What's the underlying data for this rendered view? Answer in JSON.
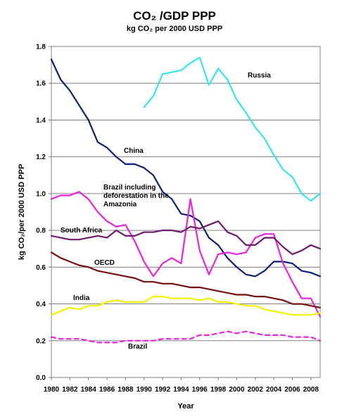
{
  "chart_data": {
    "type": "line",
    "title": "CO₂ /GDP PPP",
    "subtitle": "kg CO₂ per 2000 USD PPP",
    "xlabel": "Year",
    "ylabel": "kg CO₂/per 2000 USD PPP",
    "xlim": [
      1980,
      2009
    ],
    "ylim": [
      0,
      1.8
    ],
    "yticks": [
      "0.0",
      "0.2",
      "0.4",
      "0.6",
      "0.8",
      "1.0",
      "1.2",
      "1.4",
      "1.6",
      "1.8"
    ],
    "xticks": [
      "1980",
      "1982",
      "1984",
      "1986",
      "1988",
      "1990",
      "1992",
      "1994",
      "1996",
      "1998",
      "2000",
      "2002",
      "2004",
      "2006",
      "2008"
    ],
    "grid": true,
    "legend": "none",
    "series": [
      {
        "name": "Russia",
        "label": "Russia",
        "color": "#33e6f0",
        "dashed": false,
        "x": [
          1990,
          1991,
          1992,
          1993,
          1994,
          1995,
          1996,
          1997,
          1998,
          1999,
          2000,
          2001,
          2002,
          2003,
          2004,
          2005,
          2006,
          2007,
          2008,
          2009
        ],
        "values": [
          1.47,
          1.53,
          1.65,
          1.66,
          1.67,
          1.71,
          1.74,
          1.59,
          1.68,
          1.62,
          1.51,
          1.44,
          1.36,
          1.3,
          1.21,
          1.13,
          1.09,
          1.0,
          0.96,
          1.0
        ]
      },
      {
        "name": "China",
        "label": "China",
        "color": "#0d1f7a",
        "dashed": false,
        "x": [
          1980,
          1981,
          1982,
          1983,
          1984,
          1985,
          1986,
          1987,
          1988,
          1989,
          1990,
          1991,
          1992,
          1993,
          1994,
          1995,
          1996,
          1997,
          1998,
          1999,
          2000,
          2001,
          2002,
          2003,
          2004,
          2005,
          2006,
          2007,
          2008,
          2009
        ],
        "values": [
          1.73,
          1.62,
          1.56,
          1.48,
          1.4,
          1.28,
          1.25,
          1.2,
          1.16,
          1.16,
          1.14,
          1.1,
          1.01,
          0.97,
          0.89,
          0.88,
          0.85,
          0.76,
          0.72,
          0.65,
          0.6,
          0.56,
          0.55,
          0.58,
          0.63,
          0.63,
          0.62,
          0.58,
          0.57,
          0.55
        ]
      },
      {
        "name": "Brazil including deforestation in the Amazonia",
        "label": "Brazil including\ndeforestation in the\nAmazonia",
        "color": "#ee22dd",
        "dashed": false,
        "x": [
          1980,
          1981,
          1982,
          1983,
          1984,
          1985,
          1986,
          1987,
          1988,
          1989,
          1990,
          1991,
          1992,
          1993,
          1994,
          1995,
          1996,
          1997,
          1998,
          1999,
          2000,
          2001,
          2002,
          2003,
          2004,
          2005,
          2006,
          2007,
          2008,
          2009
        ],
        "values": [
          0.97,
          0.99,
          0.99,
          1.01,
          0.97,
          0.9,
          0.85,
          0.82,
          0.83,
          0.74,
          0.63,
          0.55,
          0.62,
          0.65,
          0.62,
          0.97,
          0.69,
          0.56,
          0.67,
          0.68,
          0.67,
          0.68,
          0.76,
          0.78,
          0.78,
          0.62,
          0.52,
          0.43,
          0.43,
          0.33
        ]
      },
      {
        "name": "South Africa",
        "label": "South Africa",
        "color": "#6e1a6e",
        "dashed": false,
        "x": [
          1980,
          1981,
          1982,
          1983,
          1984,
          1985,
          1986,
          1987,
          1988,
          1989,
          1990,
          1991,
          1992,
          1993,
          1994,
          1995,
          1996,
          1997,
          1998,
          1999,
          2000,
          2001,
          2002,
          2003,
          2004,
          2005,
          2006,
          2007,
          2008,
          2009
        ],
        "values": [
          0.77,
          0.76,
          0.75,
          0.75,
          0.76,
          0.77,
          0.76,
          0.8,
          0.77,
          0.77,
          0.79,
          0.79,
          0.8,
          0.8,
          0.79,
          0.82,
          0.81,
          0.83,
          0.85,
          0.79,
          0.77,
          0.72,
          0.72,
          0.76,
          0.76,
          0.71,
          0.67,
          0.69,
          0.72,
          0.7
        ]
      },
      {
        "name": "OECD",
        "label": "OECD",
        "color": "#7a0f0f",
        "dashed": false,
        "x": [
          1980,
          1981,
          1982,
          1983,
          1984,
          1985,
          1986,
          1987,
          1988,
          1989,
          1990,
          1991,
          1992,
          1993,
          1994,
          1995,
          1996,
          1997,
          1998,
          1999,
          2000,
          2001,
          2002,
          2003,
          2004,
          2005,
          2006,
          2007,
          2008,
          2009
        ],
        "values": [
          0.68,
          0.65,
          0.63,
          0.61,
          0.6,
          0.58,
          0.57,
          0.56,
          0.55,
          0.54,
          0.52,
          0.52,
          0.51,
          0.51,
          0.5,
          0.49,
          0.49,
          0.48,
          0.47,
          0.46,
          0.45,
          0.45,
          0.44,
          0.44,
          0.43,
          0.42,
          0.4,
          0.4,
          0.39,
          0.38
        ]
      },
      {
        "name": "India",
        "label": "India",
        "color": "#f2f200",
        "dashed": false,
        "x": [
          1980,
          1981,
          1982,
          1983,
          1984,
          1985,
          1986,
          1987,
          1988,
          1989,
          1990,
          1991,
          1992,
          1993,
          1994,
          1995,
          1996,
          1997,
          1998,
          1999,
          2000,
          2001,
          2002,
          2003,
          2004,
          2005,
          2006,
          2007,
          2008,
          2009
        ],
        "values": [
          0.34,
          0.36,
          0.38,
          0.37,
          0.39,
          0.39,
          0.41,
          0.42,
          0.41,
          0.41,
          0.41,
          0.44,
          0.44,
          0.43,
          0.43,
          0.43,
          0.42,
          0.43,
          0.41,
          0.41,
          0.4,
          0.39,
          0.39,
          0.37,
          0.36,
          0.35,
          0.34,
          0.34,
          0.34,
          0.35
        ]
      },
      {
        "name": "Brazil",
        "label": "Brazil",
        "color": "#ee22dd",
        "dashed": true,
        "x": [
          1980,
          1981,
          1982,
          1983,
          1984,
          1985,
          1986,
          1987,
          1988,
          1989,
          1990,
          1991,
          1992,
          1993,
          1994,
          1995,
          1996,
          1997,
          1998,
          1999,
          2000,
          2001,
          2002,
          2003,
          2004,
          2005,
          2006,
          2007,
          2008,
          2009
        ],
        "values": [
          0.22,
          0.21,
          0.21,
          0.21,
          0.2,
          0.19,
          0.19,
          0.19,
          0.2,
          0.2,
          0.2,
          0.2,
          0.21,
          0.21,
          0.21,
          0.21,
          0.23,
          0.23,
          0.24,
          0.25,
          0.24,
          0.25,
          0.24,
          0.23,
          0.23,
          0.23,
          0.22,
          0.22,
          0.22,
          0.2
        ]
      }
    ]
  }
}
